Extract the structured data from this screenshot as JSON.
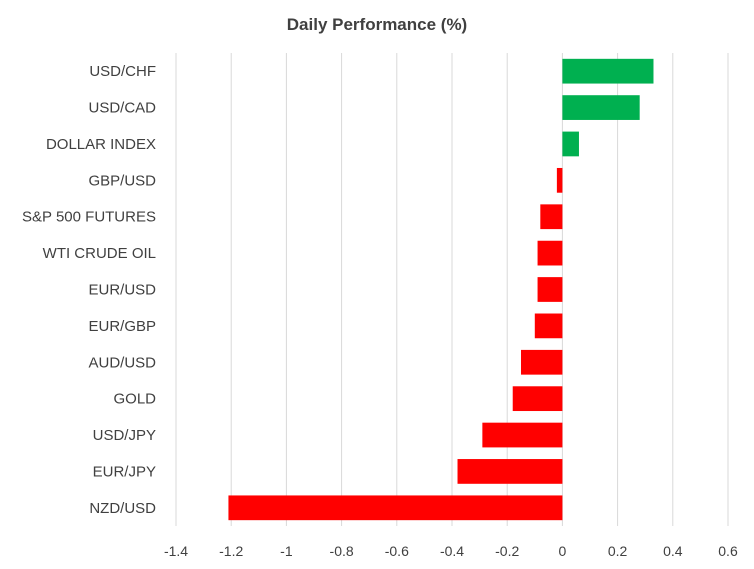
{
  "chart_data": {
    "type": "bar",
    "orientation": "horizontal",
    "title": "Daily Performance (%)",
    "xlabel": "",
    "ylabel": "",
    "xlim": [
      -1.4,
      0.6
    ],
    "x_ticks": [
      -1.4,
      -1.2,
      -1,
      -0.8,
      -0.6,
      -0.4,
      -0.2,
      0,
      0.2,
      0.4,
      0.6
    ],
    "x_tick_labels": [
      "-1.4",
      "-1.2",
      "-1",
      "-0.8",
      "-0.6",
      "-0.4",
      "-0.2",
      "0",
      "0.2",
      "0.4",
      "0.6"
    ],
    "grid": "vertical",
    "legend": "none",
    "categories": [
      "USD/CHF",
      "USD/CAD",
      "DOLLAR INDEX",
      "GBP/USD",
      "S&P 500 FUTURES",
      "WTI CRUDE OIL",
      "EUR/USD",
      "EUR/GBP",
      "AUD/USD",
      "GOLD",
      "USD/JPY",
      "EUR/JPY",
      "NZD/USD"
    ],
    "values": [
      0.33,
      0.28,
      0.06,
      -0.02,
      -0.08,
      -0.09,
      -0.09,
      -0.1,
      -0.15,
      -0.18,
      -0.29,
      -0.38,
      -1.21
    ],
    "colors": {
      "positive": "#00b050",
      "negative": "#ff0000",
      "grid": "#d9d9d9",
      "text": "#404040"
    }
  }
}
